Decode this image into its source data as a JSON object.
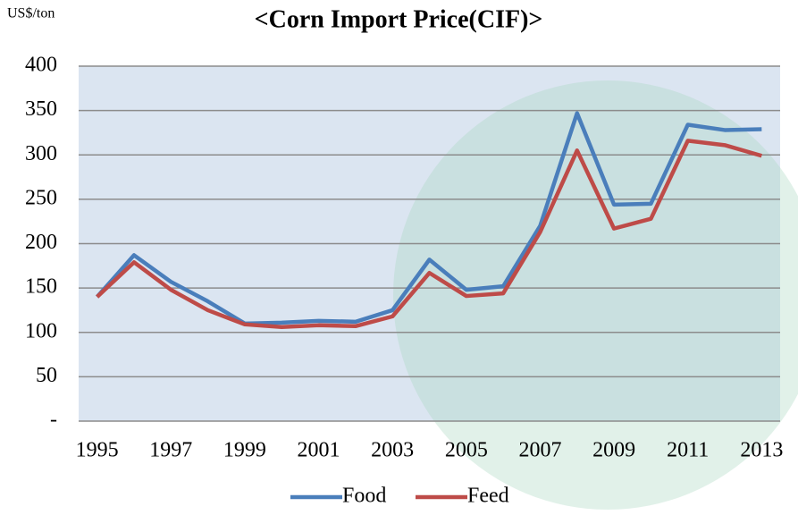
{
  "chart_data": {
    "type": "line",
    "title": "<Corn Import Price(CIF)>",
    "y_axis_label": "US$/ton",
    "x": [
      1995,
      1996,
      1997,
      1998,
      1999,
      2000,
      2001,
      2002,
      2003,
      2004,
      2005,
      2006,
      2007,
      2008,
      2009,
      2010,
      2011,
      2012,
      2013
    ],
    "xlim": [
      1994.5,
      2013.5
    ],
    "xticks": [
      1995,
      1997,
      1999,
      2001,
      2003,
      2005,
      2007,
      2009,
      2011,
      2013
    ],
    "ylim": [
      0,
      400
    ],
    "yticks": [
      {
        "value": 0,
        "label": "-"
      },
      50,
      100,
      150,
      200,
      250,
      300,
      350,
      400
    ],
    "grid": true,
    "legend": "bottom",
    "series": [
      {
        "name": "Food",
        "color": "#4a7ebb",
        "values": [
          140,
          187,
          157,
          135,
          110,
          111,
          113,
          112,
          125,
          182,
          148,
          152,
          220,
          347,
          244,
          245,
          334,
          328,
          329
        ]
      },
      {
        "name": "Feed",
        "color": "#be4b48",
        "values": [
          140,
          179,
          148,
          125,
          109,
          106,
          108,
          107,
          118,
          167,
          141,
          144,
          213,
          305,
          217,
          228,
          316,
          311,
          299
        ]
      }
    ]
  }
}
